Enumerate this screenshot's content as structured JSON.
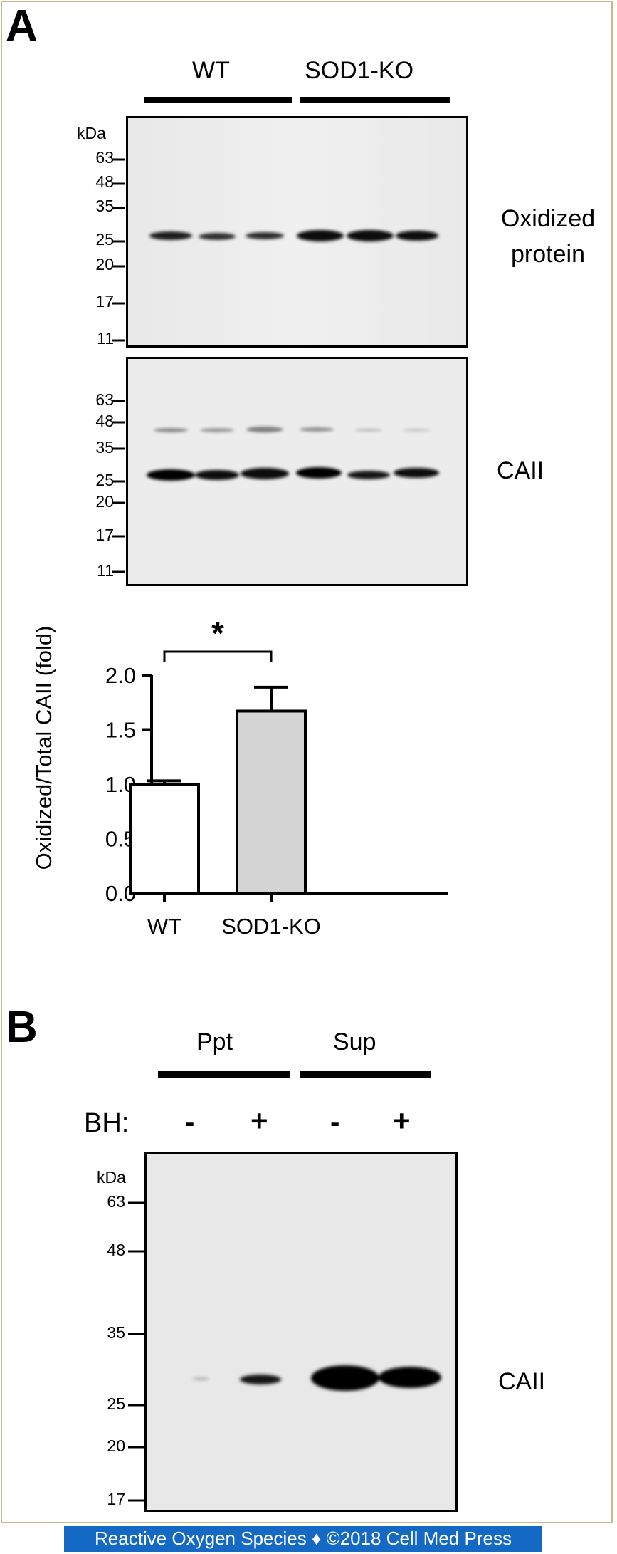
{
  "panel_a": {
    "letter": "A",
    "groups": [
      "WT",
      "SOD1-KO"
    ],
    "kda_label": "kDa",
    "blot1": {
      "label_line1": "Oxidized",
      "label_line2": "protein",
      "markers": [
        "63",
        "48",
        "35",
        "25",
        "20",
        "17",
        "11"
      ]
    },
    "blot2": {
      "label": "CAII",
      "markers": [
        "63",
        "48",
        "35",
        "25",
        "20",
        "17",
        "11"
      ]
    },
    "significance": "*"
  },
  "chart_data": {
    "type": "bar",
    "categories": [
      "WT",
      "SOD1-KO"
    ],
    "values": [
      1.0,
      1.67
    ],
    "errors": [
      0.03,
      0.22
    ],
    "ylabel": "Oxidized/Total CAII (fold)",
    "ylim": [
      0.0,
      2.0
    ],
    "yticks": [
      "0.0",
      "0.5",
      "1.0",
      "1.5",
      "2.0"
    ],
    "bar_colors": [
      "#ffffff",
      "#d4d4d4"
    ]
  },
  "panel_b": {
    "letter": "B",
    "groups": [
      "Ppt",
      "Sup"
    ],
    "treatment_label": "BH:",
    "treatments": [
      "-",
      "+",
      "-",
      "+"
    ],
    "kda_label": "kDa",
    "markers": [
      "63",
      "48",
      "35",
      "25",
      "20",
      "17"
    ],
    "label": "CAII"
  },
  "footer": "Reactive Oxygen Species ♦ ©2018 Cell Med Press"
}
